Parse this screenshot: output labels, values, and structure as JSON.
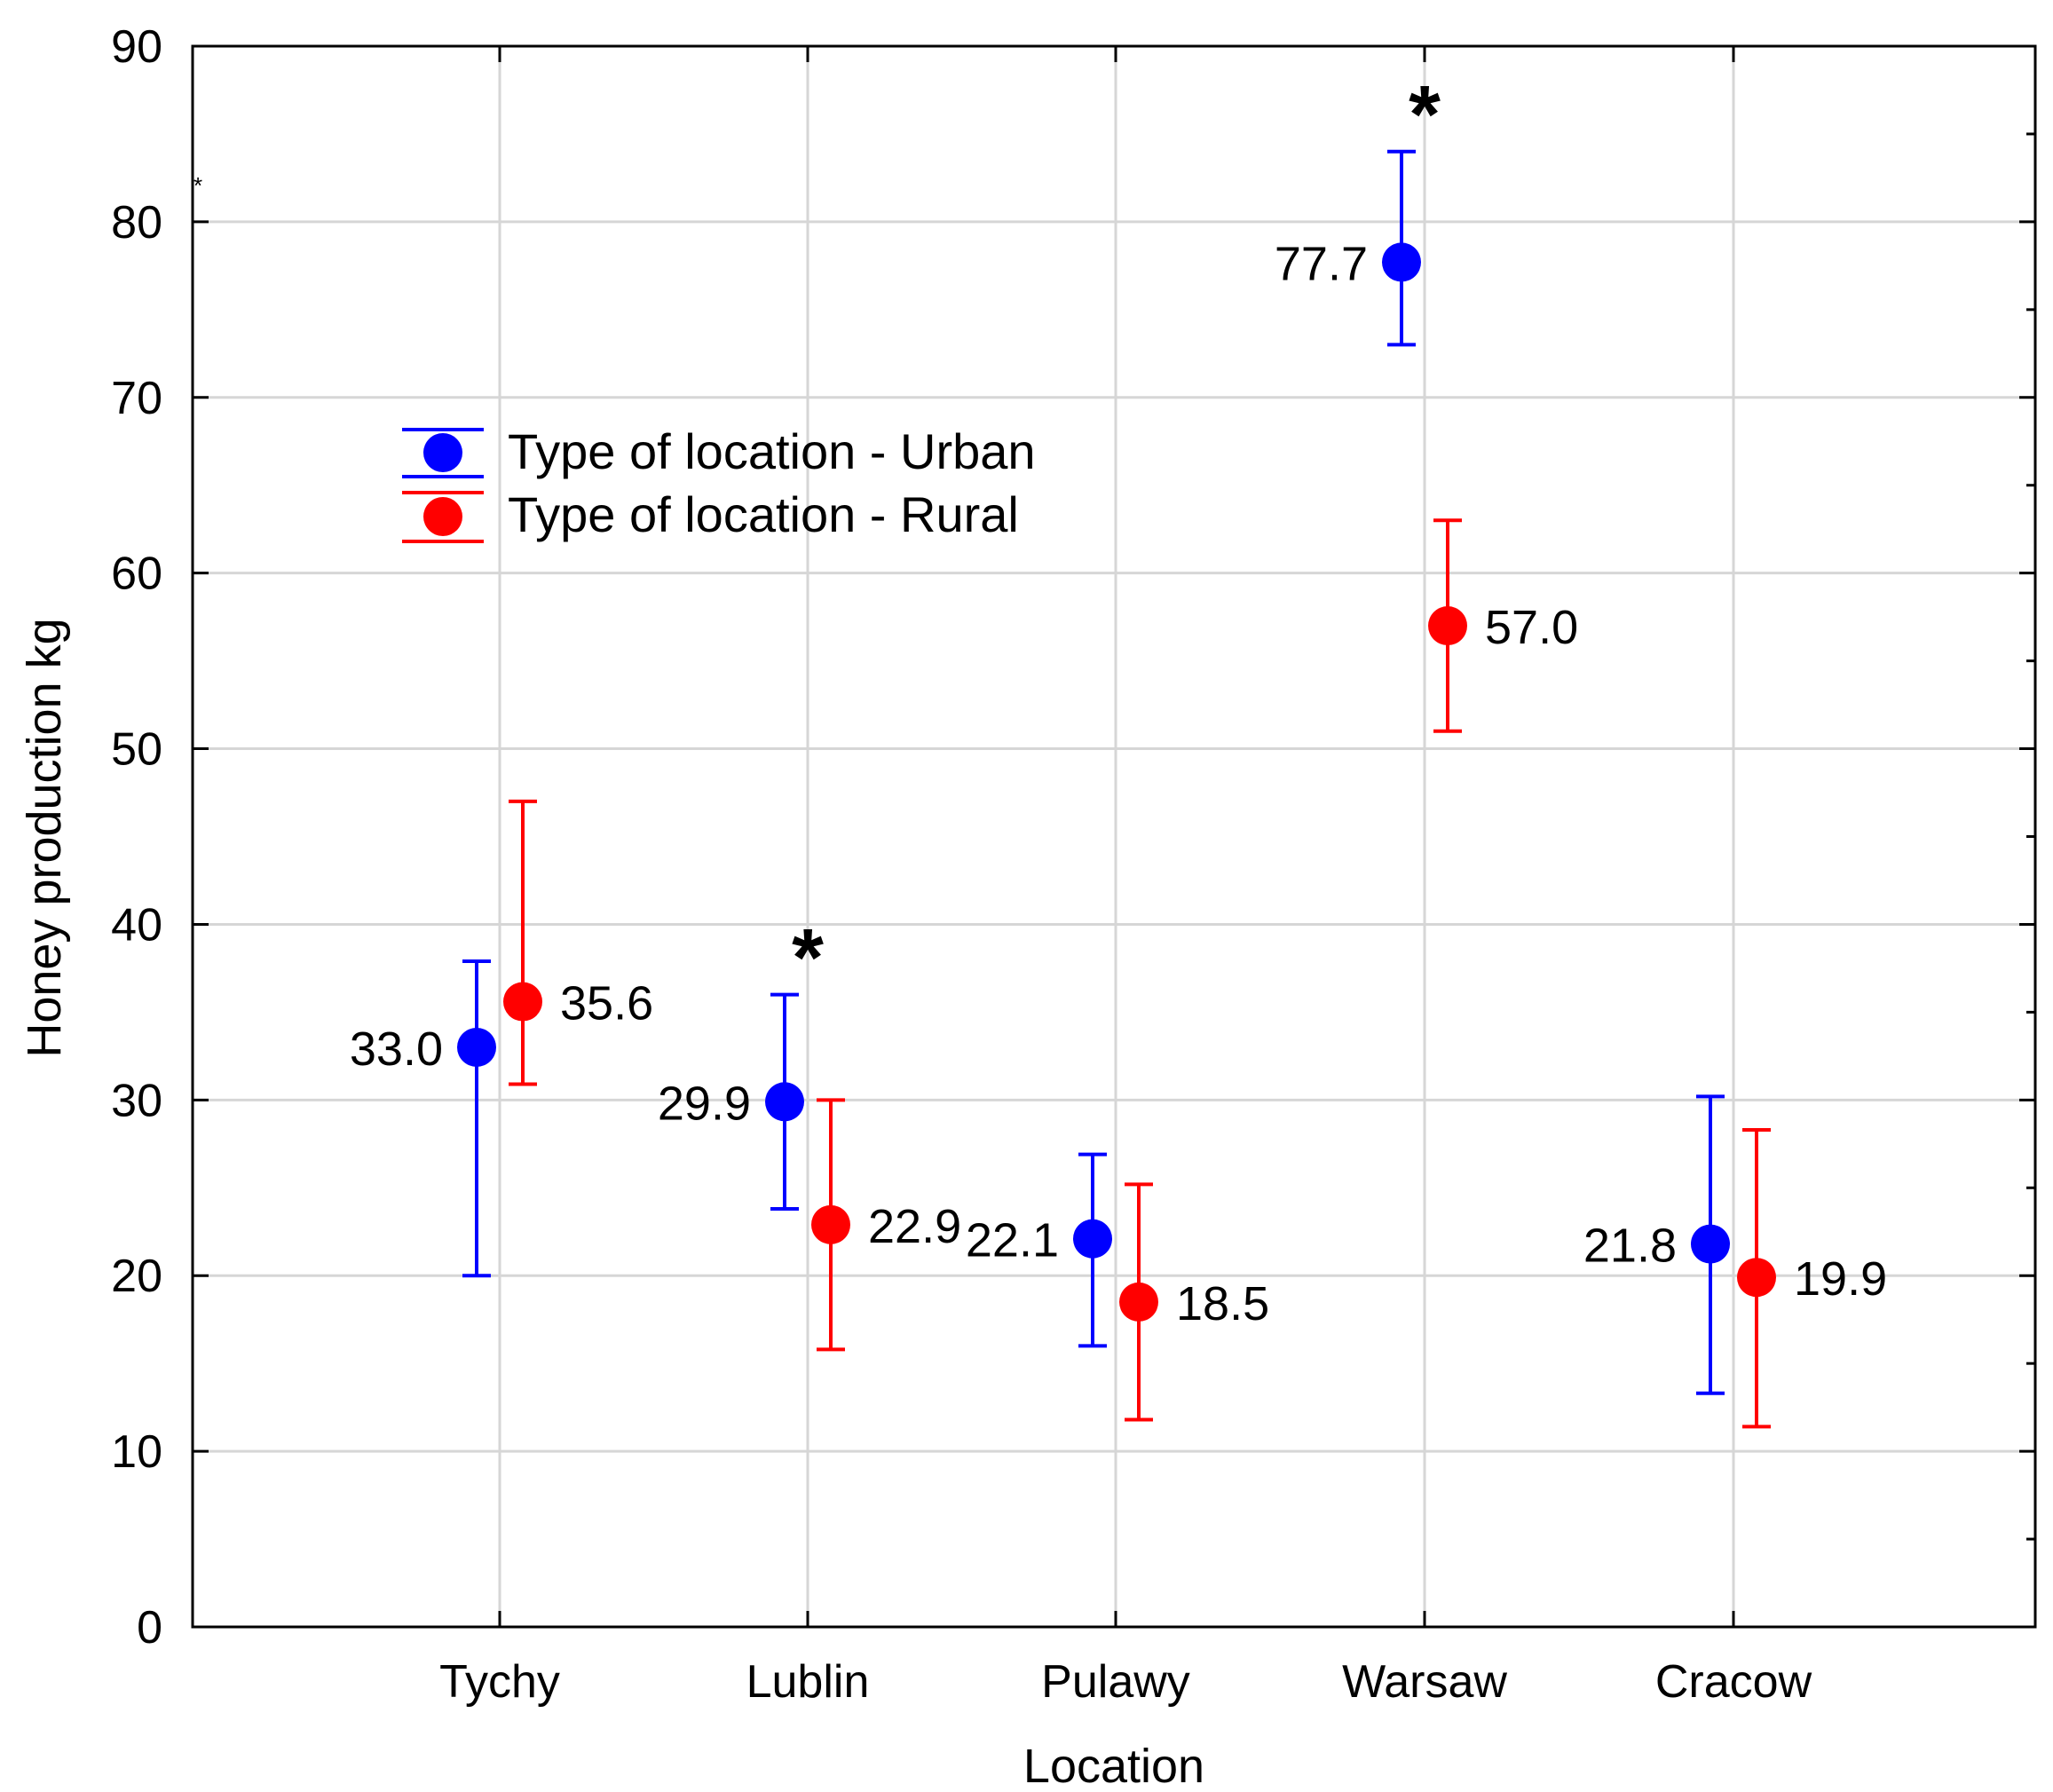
{
  "chart_data": {
    "type": "scatter",
    "title": "",
    "xlabel": "Location",
    "ylabel": "Honey production kg",
    "ylim": [
      0,
      90
    ],
    "yticks": [
      0,
      10,
      20,
      30,
      40,
      50,
      60,
      70,
      80,
      90
    ],
    "grid": true,
    "legend_position": "upper-left",
    "categories": [
      "Tychy",
      "Lublin",
      "Pulawy",
      "Warsaw",
      "Cracow"
    ],
    "series": [
      {
        "name": "Type of location - Urban",
        "color": "#0000ff",
        "values": [
          33.0,
          29.9,
          22.1,
          77.7,
          21.8
        ],
        "labels": [
          "33.0",
          "29.9",
          "22.1",
          "77.7",
          "21.8"
        ],
        "error_low": [
          20.0,
          23.8,
          16.0,
          73.0,
          13.3
        ],
        "error_high": [
          37.9,
          36.0,
          26.9,
          84.0,
          30.2
        ]
      },
      {
        "name": "Type of location - Rural",
        "color": "#ff0000",
        "values": [
          35.6,
          22.9,
          18.5,
          57.0,
          19.9
        ],
        "labels": [
          "35.6",
          "22.9",
          "18.5",
          "57.0",
          "19.9"
        ],
        "error_low": [
          30.9,
          15.8,
          11.8,
          51.0,
          11.4
        ],
        "error_high": [
          47.0,
          30.0,
          25.2,
          63.0,
          28.3
        ]
      }
    ],
    "significance_markers": [
      {
        "category": "Lublin",
        "symbol": "*"
      },
      {
        "category": "Warsaw",
        "symbol": "*"
      }
    ],
    "corner_marker": "*"
  }
}
